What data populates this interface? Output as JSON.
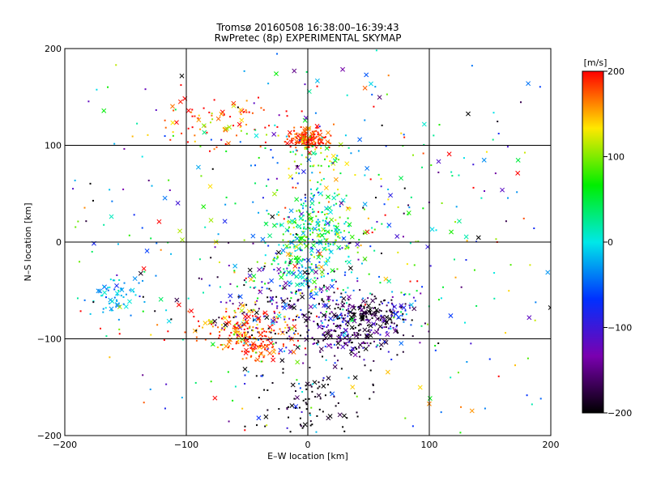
{
  "chart_data": {
    "type": "scatter",
    "title": "Tromsø 20160508 16:38:00–16:39:43",
    "subtitle": "RwPretec (8p) EXPERIMENTAL SKYMAP",
    "xlabel": "E–W location [km]",
    "ylabel": "N–S location [km]",
    "xlim": [
      -200,
      200
    ],
    "ylim": [
      -200,
      200
    ],
    "x_ticks": [
      "−200",
      "−100",
      "0",
      "100",
      "200"
    ],
    "y_ticks": [
      "−200",
      "−100",
      "0",
      "100",
      "200"
    ],
    "grid": true,
    "colorbar": {
      "label": "[m/s]",
      "range": [
        -200,
        200
      ],
      "ticks": [
        "200",
        "100",
        "0",
        "−100",
        "−200"
      ],
      "colormap": "rainbow (black→purple→blue→cyan→green→yellow→red)",
      "colors": [
        "#000000",
        "#7a00b0",
        "#0030ff",
        "#00e8e8",
        "#00ee00",
        "#ffe800",
        "#ff0000"
      ]
    },
    "markers": [
      "dot",
      "x"
    ],
    "clusters": [
      {
        "x": 0,
        "y": 107,
        "sx": 8,
        "sy": 5,
        "n": 150,
        "v": 185,
        "vs": 15
      },
      {
        "x": 5,
        "y": 85,
        "sx": 14,
        "sy": 12,
        "n": 50,
        "v": 95,
        "vs": 40
      },
      {
        "x": 5,
        "y": 12,
        "sx": 18,
        "sy": 20,
        "n": 260,
        "v": 35,
        "vs": 55
      },
      {
        "x": 0,
        "y": -30,
        "sx": 18,
        "sy": 18,
        "n": 120,
        "v": -10,
        "vs": 70
      },
      {
        "x": 5,
        "y": -65,
        "sx": 28,
        "sy": 22,
        "n": 120,
        "v": -110,
        "vs": 70
      },
      {
        "x": 50,
        "y": -75,
        "sx": 14,
        "sy": 10,
        "n": 150,
        "v": -185,
        "vs": 25
      },
      {
        "x": 35,
        "y": -95,
        "sx": 28,
        "sy": 14,
        "n": 180,
        "v": -160,
        "vs": 45
      },
      {
        "x": 75,
        "y": -70,
        "sx": 8,
        "sy": 8,
        "n": 30,
        "v": -80,
        "vs": 30
      },
      {
        "x": -50,
        "y": -90,
        "sx": 20,
        "sy": 12,
        "n": 180,
        "v": 175,
        "vs": 40
      },
      {
        "x": -40,
        "y": -110,
        "sx": 10,
        "sy": 6,
        "n": 60,
        "v": 185,
        "vs": 15
      },
      {
        "x": -30,
        "y": -60,
        "sx": 30,
        "sy": 20,
        "n": 100,
        "v": -170,
        "vs": 40
      },
      {
        "x": -155,
        "y": -55,
        "sx": 12,
        "sy": 10,
        "n": 55,
        "v": -20,
        "vs": 25
      },
      {
        "x": -65,
        "y": 125,
        "sx": 30,
        "sy": 14,
        "n": 90,
        "v": 170,
        "vs": 45
      },
      {
        "x": 10,
        "y": -160,
        "sx": 25,
        "sy": 20,
        "n": 90,
        "v": -200,
        "vs": 15
      },
      {
        "x": 0,
        "y": 0,
        "sx": 110,
        "sy": 110,
        "n": 600,
        "v": 0,
        "vs": 120
      }
    ]
  }
}
